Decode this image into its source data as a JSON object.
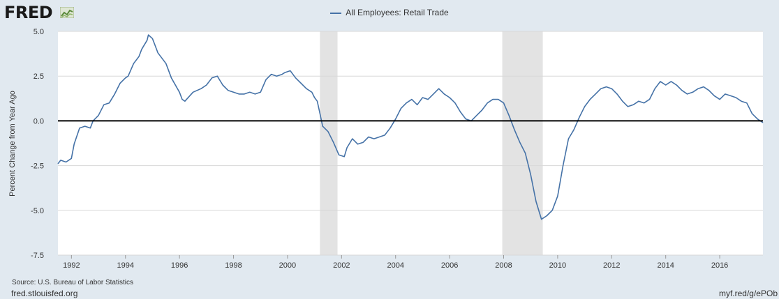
{
  "header": {
    "logo_text": "FRED",
    "logo_icon": "line-chart-icon"
  },
  "footer": {
    "source": "Source: U.S. Bureau of Labor Statistics",
    "site": "fred.stlouisfed.org",
    "link": "myf.red/g/ePOb"
  },
  "colors": {
    "line": "#4572a7",
    "plot_bg": "#ffffff",
    "page_bg": "#e1e9f0",
    "recession": "#e3e3e3",
    "zero_line": "#000000",
    "grid": "#d8d8d8"
  },
  "chart_data": {
    "type": "line",
    "title": "",
    "xlabel": "",
    "ylabel": "Percent Change from Year Ago",
    "legend_position": "top-center",
    "grid": true,
    "xlim": [
      1991.5,
      2017.6
    ],
    "ylim": [
      -7.5,
      5.0
    ],
    "yticks": [
      "5.0",
      "2.5",
      "0.0",
      "-2.5",
      "-5.0",
      "-7.5"
    ],
    "xticks": [
      "1992",
      "1994",
      "1996",
      "1998",
      "2000",
      "2002",
      "2004",
      "2006",
      "2008",
      "2010",
      "2012",
      "2014",
      "2016"
    ],
    "recessions": [
      [
        2001.2,
        2001.85
      ],
      [
        2007.95,
        2009.45
      ]
    ],
    "series": [
      {
        "name": "All Employees: Retail Trade",
        "x": [
          1991.5,
          1991.6,
          1991.8,
          1992.0,
          1992.1,
          1992.3,
          1992.5,
          1992.7,
          1992.8,
          1993.0,
          1993.2,
          1993.4,
          1993.6,
          1993.8,
          1994.0,
          1994.1,
          1994.3,
          1994.5,
          1994.6,
          1994.8,
          1994.85,
          1995.0,
          1995.1,
          1995.2,
          1995.5,
          1995.7,
          1996.0,
          1996.1,
          1996.2,
          1996.5,
          1996.8,
          1997.0,
          1997.2,
          1997.4,
          1997.6,
          1997.8,
          1998.0,
          1998.2,
          1998.4,
          1998.6,
          1998.8,
          1999.0,
          1999.2,
          1999.4,
          1999.6,
          1999.8,
          1999.9,
          2000.1,
          2000.3,
          2000.5,
          2000.7,
          2000.9,
          2001.0,
          2001.1,
          2001.2,
          2001.3,
          2001.5,
          2001.7,
          2001.9,
          2002.1,
          2002.2,
          2002.4,
          2002.6,
          2002.8,
          2003.0,
          2003.2,
          2003.4,
          2003.6,
          2003.8,
          2004.0,
          2004.2,
          2004.4,
          2004.6,
          2004.8,
          2005.0,
          2005.2,
          2005.4,
          2005.6,
          2005.8,
          2006.0,
          2006.2,
          2006.4,
          2006.6,
          2006.8,
          2007.0,
          2007.2,
          2007.4,
          2007.6,
          2007.8,
          2008.0,
          2008.2,
          2008.4,
          2008.6,
          2008.8,
          2009.0,
          2009.2,
          2009.4,
          2009.6,
          2009.8,
          2010.0,
          2010.2,
          2010.4,
          2010.6,
          2010.8,
          2011.0,
          2011.2,
          2011.4,
          2011.6,
          2011.8,
          2012.0,
          2012.2,
          2012.4,
          2012.6,
          2012.8,
          2013.0,
          2013.2,
          2013.4,
          2013.6,
          2013.8,
          2014.0,
          2014.2,
          2014.4,
          2014.6,
          2014.8,
          2015.0,
          2015.2,
          2015.4,
          2015.6,
          2015.8,
          2016.0,
          2016.2,
          2016.4,
          2016.6,
          2016.8,
          2017.0,
          2017.2,
          2017.4,
          2017.6
        ],
        "values": [
          -2.4,
          -2.2,
          -2.3,
          -2.1,
          -1.3,
          -0.4,
          -0.3,
          -0.4,
          0.0,
          0.3,
          0.9,
          1.0,
          1.5,
          2.1,
          2.4,
          2.5,
          3.2,
          3.6,
          4.0,
          4.5,
          4.8,
          4.6,
          4.2,
          3.8,
          3.2,
          2.4,
          1.6,
          1.2,
          1.1,
          1.6,
          1.8,
          2.0,
          2.4,
          2.5,
          2.0,
          1.7,
          1.6,
          1.5,
          1.5,
          1.6,
          1.5,
          1.6,
          2.3,
          2.6,
          2.5,
          2.6,
          2.7,
          2.8,
          2.4,
          2.1,
          1.8,
          1.6,
          1.3,
          1.1,
          0.4,
          -0.3,
          -0.6,
          -1.2,
          -1.9,
          -2.0,
          -1.5,
          -1.0,
          -1.3,
          -1.2,
          -0.9,
          -1.0,
          -0.9,
          -0.8,
          -0.4,
          0.1,
          0.7,
          1.0,
          1.2,
          0.9,
          1.3,
          1.2,
          1.5,
          1.8,
          1.5,
          1.3,
          1.0,
          0.5,
          0.1,
          0.0,
          0.3,
          0.6,
          1.0,
          1.2,
          1.2,
          1.0,
          0.3,
          -0.5,
          -1.2,
          -1.8,
          -3.0,
          -4.5,
          -5.5,
          -5.3,
          -5.0,
          -4.2,
          -2.5,
          -1.0,
          -0.5,
          0.2,
          0.8,
          1.2,
          1.5,
          1.8,
          1.9,
          1.8,
          1.5,
          1.1,
          0.8,
          0.9,
          1.1,
          1.0,
          1.2,
          1.8,
          2.2,
          2.0,
          2.2,
          2.0,
          1.7,
          1.5,
          1.6,
          1.8,
          1.9,
          1.7,
          1.4,
          1.2,
          1.5,
          1.4,
          1.3,
          1.1,
          1.0,
          0.4,
          0.1,
          -0.1
        ]
      }
    ]
  }
}
